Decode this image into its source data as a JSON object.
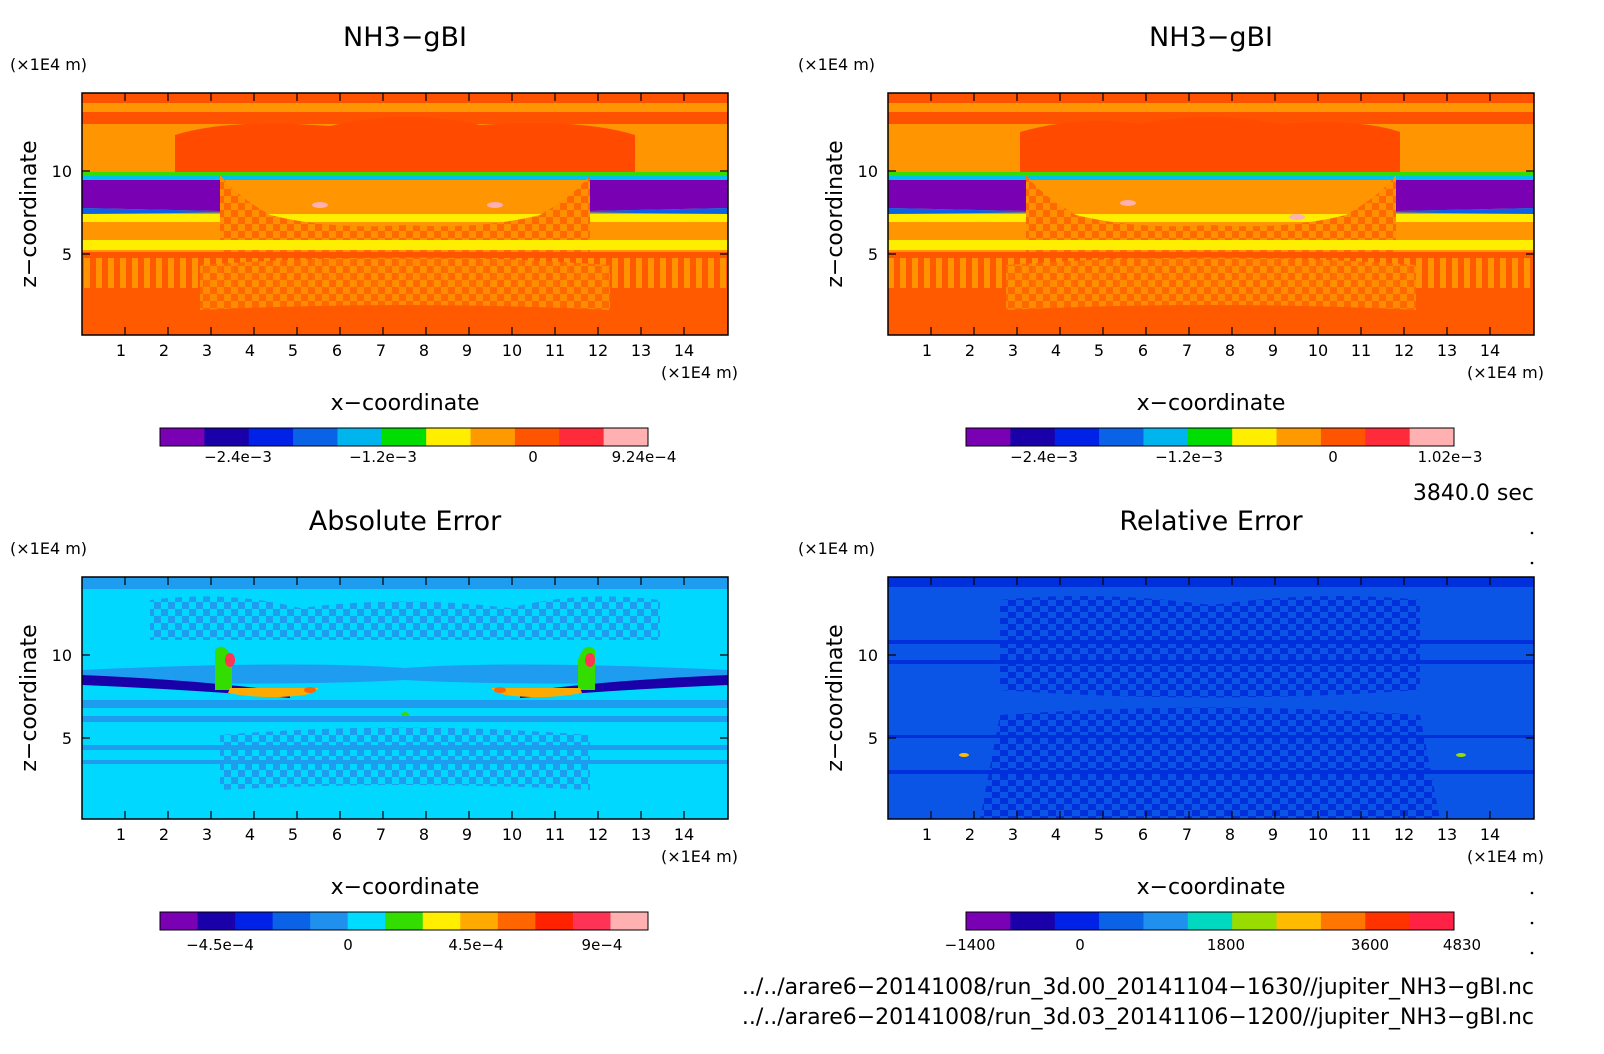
{
  "panels": [
    {
      "title": "NH3−gBI",
      "xlabel": "x−coordinate",
      "ylabel": "z−coordinate",
      "x_unit": "(×1E4 m)",
      "z_unit": "(×1E4 m)",
      "colorbar_labels": [
        "−2.4e−3",
        "−1.2e−3",
        "0",
        "9.24e−4"
      ]
    },
    {
      "title": "NH3−gBI",
      "xlabel": "x−coordinate",
      "ylabel": "z−coordinate",
      "x_unit": "(×1E4 m)",
      "z_unit": "(×1E4 m)",
      "colorbar_labels": [
        "−2.4e−3",
        "−1.2e−3",
        "0",
        "1.02e−3"
      ]
    },
    {
      "title": "Absolute Error",
      "xlabel": "x−coordinate",
      "ylabel": "z−coordinate",
      "x_unit": "(×1E4 m)",
      "z_unit": "(×1E4 m)",
      "colorbar_labels": [
        "−4.5e−4",
        "0",
        "4.5e−4",
        "9e−4"
      ]
    },
    {
      "title": "Relative Error",
      "xlabel": "x−coordinate",
      "ylabel": "z−coordinate",
      "x_unit": "(×1E4 m)",
      "z_unit": "(×1E4 m)",
      "colorbar_labels": [
        "−1400",
        "0",
        "1800",
        "3600",
        "4830"
      ]
    }
  ],
  "time_label": "3840.0 sec",
  "footer": {
    "line1": "../../arare6−20141008/run_3d.00_20141104−1630//jupiter_NH3−gBI.nc",
    "line2": "../../arare6−20141008/run_3d.03_20141106−1200//jupiter_NH3−gBI.nc"
  },
  "colors": {
    "nh3_scale": [
      "#7a00b4",
      "#1a00a8",
      "#0022e6",
      "#0a62e6",
      "#00b4ee",
      "#00dd00",
      "#ffee00",
      "#ff9900",
      "#ff5500",
      "#ff2a3a",
      "#ffb0b0"
    ],
    "abs_scale": [
      "#7a00b4",
      "#1a00a8",
      "#0022e6",
      "#0a62e6",
      "#2090ee",
      "#00dcff",
      "#33dd00",
      "#ffee00",
      "#ffaa00",
      "#ff6600",
      "#ff2200",
      "#ff3355",
      "#ffb0b0"
    ],
    "rel_scale": [
      "#7a00b4",
      "#1a00a8",
      "#0022e6",
      "#0a62e6",
      "#2090ee",
      "#00d8c0",
      "#99dd00",
      "#ffbb00",
      "#ff7700",
      "#ff3300",
      "#ff2244"
    ]
  },
  "chart_data": [
    {
      "type": "heatmap",
      "title": "NH3−gBI",
      "xlabel": "x−coordinate",
      "ylabel": "z−coordinate",
      "xlim": [
        0,
        14.8
      ],
      "ylim": [
        0,
        14.5
      ],
      "xticks": [
        1,
        2,
        3,
        4,
        5,
        6,
        7,
        8,
        9,
        10,
        11,
        12,
        13,
        14
      ],
      "yticks": [
        5,
        10
      ],
      "colorbar": {
        "min": -0.00285,
        "max": 0.000924,
        "labels": [
          -0.0024,
          -0.0012,
          0,
          0.000924
        ]
      },
      "bands": [
        {
          "z0": 0.0,
          "z1": 2.5,
          "value": "0 to positive"
        },
        {
          "z0": 7.5,
          "z1": 10.0,
          "value": "minimum (below −2.4e−3) at x 0–3.5 and 11.5–14.8"
        },
        {
          "z0": 10.0,
          "z1": 14.5,
          "value": "near 0 / positive"
        }
      ]
    },
    {
      "type": "heatmap",
      "title": "NH3−gBI",
      "xlabel": "x−coordinate",
      "ylabel": "z−coordinate",
      "xlim": [
        0,
        14.8
      ],
      "ylim": [
        0,
        14.5
      ],
      "xticks": [
        1,
        2,
        3,
        4,
        5,
        6,
        7,
        8,
        9,
        10,
        11,
        12,
        13,
        14
      ],
      "yticks": [
        5,
        10
      ],
      "colorbar": {
        "min": -0.00285,
        "max": 0.00102,
        "labels": [
          -0.0024,
          -0.0012,
          0,
          0.00102
        ]
      }
    },
    {
      "type": "heatmap",
      "title": "Absolute Error",
      "xlabel": "x−coordinate",
      "ylabel": "z−coordinate",
      "xlim": [
        0,
        14.8
      ],
      "ylim": [
        0,
        14.5
      ],
      "xticks": [
        1,
        2,
        3,
        4,
        5,
        6,
        7,
        8,
        9,
        10,
        11,
        12,
        13,
        14
      ],
      "yticks": [
        5,
        10
      ],
      "colorbar": {
        "min": -0.000675,
        "max": 0.00105,
        "labels": [
          -0.00045,
          0,
          0.00045,
          0.0009
        ]
      }
    },
    {
      "type": "heatmap",
      "title": "Relative Error",
      "xlabel": "x−coordinate",
      "ylabel": "z−coordinate",
      "xlim": [
        0,
        14.8
      ],
      "ylim": [
        0,
        14.5
      ],
      "xticks": [
        1,
        2,
        3,
        4,
        5,
        6,
        7,
        8,
        9,
        10,
        11,
        12,
        13,
        14
      ],
      "yticks": [
        5,
        10
      ],
      "colorbar": {
        "min": -1400,
        "max": 4830,
        "labels": [
          -1400,
          0,
          1800,
          3600,
          4830
        ]
      }
    }
  ]
}
